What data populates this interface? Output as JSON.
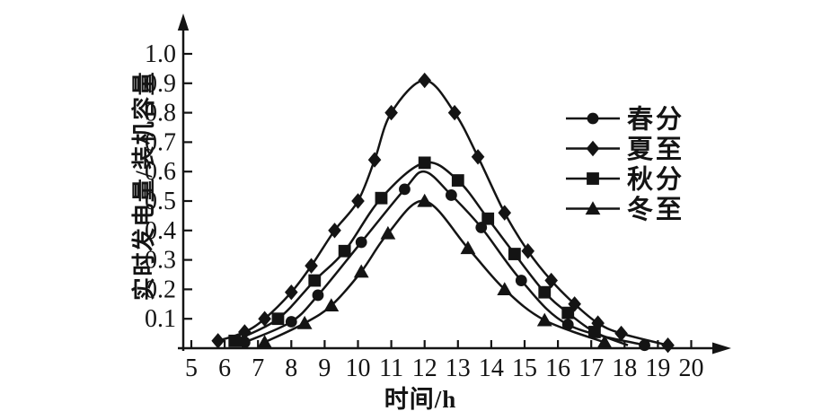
{
  "figure": {
    "background_color": "#ffffff",
    "ink_color": "#141414"
  },
  "chart_data": {
    "type": "line",
    "title": "",
    "xlabel": "时间/h",
    "ylabel": "实时发电量/装机容量",
    "xlim": [
      5,
      20.6
    ],
    "ylim": [
      0,
      1.08
    ],
    "x_ticks": [
      5,
      6,
      7,
      8,
      9,
      10,
      11,
      12,
      13,
      14,
      15,
      16,
      17,
      18,
      19,
      20
    ],
    "y_tick_labels": [
      "0.1",
      "0.2",
      "0.3",
      "0.4",
      "0.5",
      "0.6",
      "0.7",
      "0.8",
      "0.9",
      "1.0"
    ],
    "grid": false,
    "legend_position": "center-right",
    "series": [
      {
        "name": "春分",
        "key": "spring-equinox",
        "marker": "circle",
        "points": [
          [
            6.6,
            0.02
          ],
          [
            8.0,
            0.09
          ],
          [
            8.8,
            0.18
          ],
          [
            10.1,
            0.36
          ],
          [
            11.4,
            0.54
          ],
          [
            12.0,
            0.6,
            0
          ],
          [
            12.8,
            0.52
          ],
          [
            13.7,
            0.41
          ],
          [
            14.9,
            0.23
          ],
          [
            16.3,
            0.08
          ],
          [
            18.6,
            0.01
          ]
        ]
      },
      {
        "name": "夏至",
        "key": "summer-solstice",
        "marker": "diamond",
        "points": [
          [
            5.8,
            0.025
          ],
          [
            6.6,
            0.055
          ],
          [
            7.2,
            0.1
          ],
          [
            8.0,
            0.19
          ],
          [
            8.6,
            0.28
          ],
          [
            9.3,
            0.4
          ],
          [
            10.0,
            0.5
          ],
          [
            10.5,
            0.64
          ],
          [
            11.0,
            0.8
          ],
          [
            12.0,
            0.91
          ],
          [
            12.9,
            0.8
          ],
          [
            13.6,
            0.65
          ],
          [
            14.4,
            0.46
          ],
          [
            15.1,
            0.33
          ],
          [
            15.8,
            0.23
          ],
          [
            16.5,
            0.15
          ],
          [
            17.2,
            0.085
          ],
          [
            17.9,
            0.05
          ],
          [
            19.3,
            0.01
          ]
        ]
      },
      {
        "name": "秋分",
        "key": "autumn-equinox",
        "marker": "square",
        "points": [
          [
            6.3,
            0.025
          ],
          [
            7.6,
            0.1
          ],
          [
            8.7,
            0.23
          ],
          [
            9.6,
            0.33
          ],
          [
            10.7,
            0.51
          ],
          [
            12.0,
            0.63
          ],
          [
            13.0,
            0.57
          ],
          [
            13.9,
            0.44
          ],
          [
            14.7,
            0.32
          ],
          [
            15.6,
            0.19
          ],
          [
            16.3,
            0.12
          ],
          [
            17.1,
            0.055
          ],
          [
            18.1,
            0.01,
            0
          ]
        ]
      },
      {
        "name": "冬至",
        "key": "winter-solstice",
        "marker": "triangle",
        "points": [
          [
            7.2,
            0.02
          ],
          [
            8.4,
            0.085
          ],
          [
            9.2,
            0.145
          ],
          [
            10.1,
            0.26
          ],
          [
            10.9,
            0.39
          ],
          [
            12.0,
            0.5
          ],
          [
            13.3,
            0.34
          ],
          [
            14.4,
            0.2
          ],
          [
            15.6,
            0.095
          ],
          [
            17.4,
            0.02
          ]
        ]
      }
    ]
  }
}
